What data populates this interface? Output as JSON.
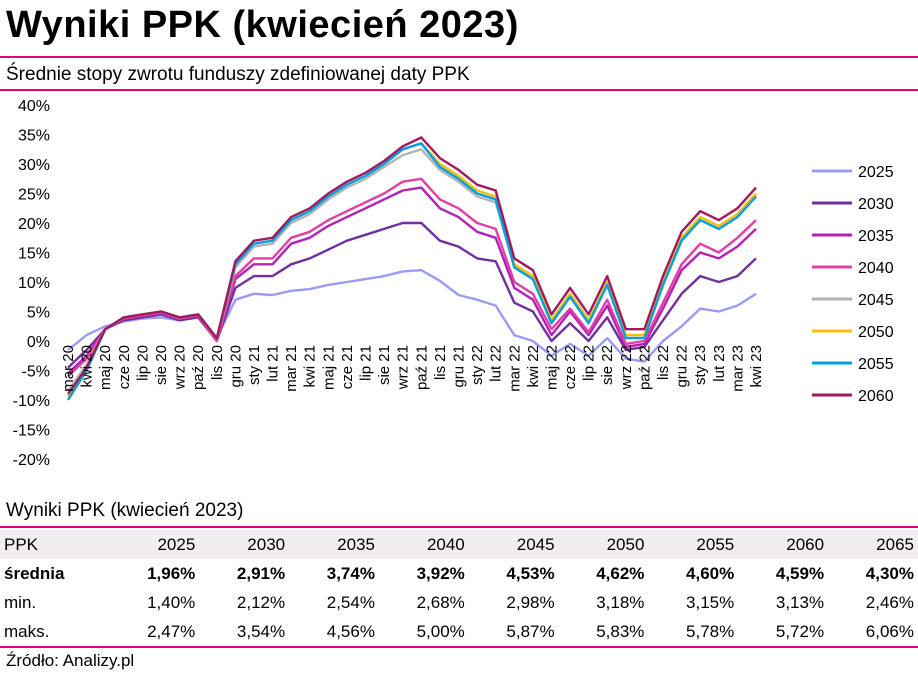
{
  "title": "Wyniki PPK (kwiecień 2023)",
  "subtitle": "Średnie stopy zwrotu funduszy zdefiniowanej daty PPK",
  "chart_data": {
    "type": "line",
    "ylim": [
      -20,
      40
    ],
    "ytick_values": [
      -20,
      -15,
      -10,
      -5,
      0,
      5,
      10,
      15,
      20,
      25,
      30,
      35,
      40
    ],
    "ytick_labels": [
      "-20%",
      "-15%",
      "-10%",
      "-5%",
      "0%",
      "5%",
      "10%",
      "15%",
      "20%",
      "25%",
      "30%",
      "35%",
      "40%"
    ],
    "xtick_labels": [
      "mar 20",
      "kwi 20",
      "maj 20",
      "cze 20",
      "lip 20",
      "sie 20",
      "wrz 20",
      "paź 20",
      "lis 20",
      "gru 20",
      "sty 21",
      "lut 21",
      "mar 21",
      "kwi 21",
      "maj 21",
      "cze 21",
      "lip 21",
      "sie 21",
      "wrz 21",
      "paź 21",
      "lis 21",
      "gru 21",
      "sty 22",
      "lut 22",
      "mar 22",
      "kwi 22",
      "maj 22",
      "cze 22",
      "lip 22",
      "sie 22",
      "wrz 22",
      "paź 22",
      "lis 22",
      "gru 22",
      "sty 23",
      "lut 23",
      "mar 23",
      "kwi 23"
    ],
    "legend_position": "right",
    "grid": false,
    "series": [
      {
        "name": "2025",
        "color": "#9b9bf5",
        "values": [
          -1.5,
          1.0,
          2.5,
          3.3,
          3.8,
          4.0,
          3.5,
          4.3,
          0.5,
          7.0,
          8.0,
          7.8,
          8.5,
          8.8,
          9.5,
          10.0,
          10.5,
          11.0,
          11.8,
          12.0,
          10.2,
          7.8,
          7.0,
          6.0,
          1.0,
          0.0,
          -2.5,
          -0.5,
          -2.5,
          0.5,
          -3.0,
          -3.5,
          0.0,
          2.5,
          5.5,
          5.0,
          6.0,
          8.0
        ]
      },
      {
        "name": "2030",
        "color": "#7030a0",
        "values": [
          -4.5,
          -1.5,
          2.0,
          3.5,
          4.0,
          4.5,
          3.5,
          4.0,
          0.0,
          9.0,
          11.0,
          11.0,
          13.0,
          14.0,
          15.5,
          17.0,
          18.0,
          19.0,
          20.0,
          20.0,
          17.0,
          16.0,
          14.0,
          13.5,
          6.5,
          5.0,
          0.0,
          3.0,
          0.0,
          4.0,
          -1.5,
          -1.0,
          3.5,
          8.0,
          11.0,
          10.0,
          11.0,
          14.0
        ]
      },
      {
        "name": "2035",
        "color": "#b520b5",
        "values": [
          -5.5,
          -2.5,
          2.0,
          3.8,
          4.3,
          4.8,
          3.8,
          4.3,
          0.0,
          10.5,
          13.0,
          13.0,
          16.5,
          17.5,
          19.5,
          21.0,
          22.5,
          24.0,
          25.5,
          26.0,
          22.5,
          21.0,
          18.5,
          17.5,
          9.0,
          7.0,
          1.0,
          5.0,
          1.0,
          6.0,
          -1.0,
          -0.5,
          5.5,
          12.0,
          15.0,
          14.0,
          16.0,
          19.0
        ]
      },
      {
        "name": "2040",
        "color": "#e23fa4",
        "values": [
          -6.0,
          -3.0,
          2.0,
          3.8,
          4.3,
          4.8,
          3.8,
          4.3,
          0.0,
          11.0,
          14.0,
          14.0,
          17.5,
          18.5,
          20.5,
          22.0,
          23.5,
          25.0,
          27.0,
          27.5,
          24.0,
          22.5,
          20.0,
          19.0,
          10.0,
          8.0,
          2.0,
          5.5,
          1.5,
          7.0,
          -0.5,
          0.0,
          6.5,
          13.0,
          16.5,
          15.0,
          17.5,
          20.5
        ]
      },
      {
        "name": "2045",
        "color": "#b4b4b4",
        "values": [
          -8.5,
          -4.0,
          2.0,
          4.0,
          4.5,
          5.0,
          4.0,
          4.5,
          0.5,
          12.5,
          16.0,
          16.5,
          20.0,
          21.5,
          24.0,
          26.0,
          27.5,
          29.5,
          31.5,
          32.5,
          29.0,
          27.0,
          24.5,
          23.5,
          12.5,
          10.5,
          3.5,
          8.0,
          3.5,
          9.5,
          1.0,
          1.0,
          9.5,
          17.0,
          20.5,
          19.0,
          21.0,
          24.5
        ]
      },
      {
        "name": "2050",
        "color": "#f5c000",
        "values": [
          -9.5,
          -4.5,
          2.0,
          4.0,
          4.5,
          5.0,
          4.0,
          4.5,
          0.5,
          13.0,
          16.5,
          17.0,
          20.5,
          22.0,
          24.5,
          26.5,
          28.0,
          30.0,
          32.5,
          33.5,
          30.0,
          28.0,
          25.5,
          24.5,
          13.0,
          11.0,
          3.5,
          8.0,
          3.5,
          10.0,
          1.0,
          1.0,
          10.0,
          17.5,
          21.0,
          19.5,
          21.5,
          25.0
        ]
      },
      {
        "name": "2055",
        "color": "#00a0e6",
        "values": [
          -10.0,
          -5.0,
          2.0,
          4.0,
          4.5,
          5.0,
          4.0,
          4.5,
          0.5,
          13.0,
          16.5,
          17.0,
          20.5,
          22.0,
          24.5,
          26.5,
          28.0,
          30.0,
          32.5,
          33.5,
          29.5,
          27.5,
          25.0,
          24.0,
          12.5,
          10.5,
          3.0,
          7.5,
          3.0,
          9.5,
          0.5,
          0.5,
          9.5,
          17.0,
          20.5,
          19.0,
          21.0,
          24.5
        ]
      },
      {
        "name": "2060",
        "color": "#a3195b",
        "values": [
          -9.0,
          -4.5,
          2.0,
          4.0,
          4.5,
          5.0,
          4.0,
          4.5,
          0.5,
          13.5,
          17.0,
          17.5,
          21.0,
          22.5,
          25.0,
          27.0,
          28.5,
          30.5,
          33.0,
          34.5,
          31.0,
          29.0,
          26.5,
          25.5,
          14.0,
          12.0,
          4.5,
          9.0,
          4.5,
          11.0,
          2.0,
          2.0,
          11.0,
          18.5,
          22.0,
          20.5,
          22.5,
          26.0
        ]
      }
    ]
  },
  "table": {
    "title": "Wyniki PPK (kwiecień 2023)",
    "columns": [
      "PPK",
      "2025",
      "2030",
      "2035",
      "2040",
      "2045",
      "2050",
      "2055",
      "2060",
      "2065"
    ],
    "rows": [
      {
        "label": "średnia",
        "values": [
          "1,96%",
          "2,91%",
          "3,74%",
          "3,92%",
          "4,53%",
          "4,62%",
          "4,60%",
          "4,59%",
          "4,30%"
        ]
      },
      {
        "label": "min.",
        "values": [
          "1,40%",
          "2,12%",
          "2,54%",
          "2,68%",
          "2,98%",
          "3,18%",
          "3,15%",
          "3,13%",
          "2,46%"
        ]
      },
      {
        "label": "maks.",
        "values": [
          "2,47%",
          "3,54%",
          "4,56%",
          "5,00%",
          "5,87%",
          "5,83%",
          "5,78%",
          "5,72%",
          "6,06%"
        ]
      }
    ]
  },
  "source": "Źródło: Analizy.pl"
}
